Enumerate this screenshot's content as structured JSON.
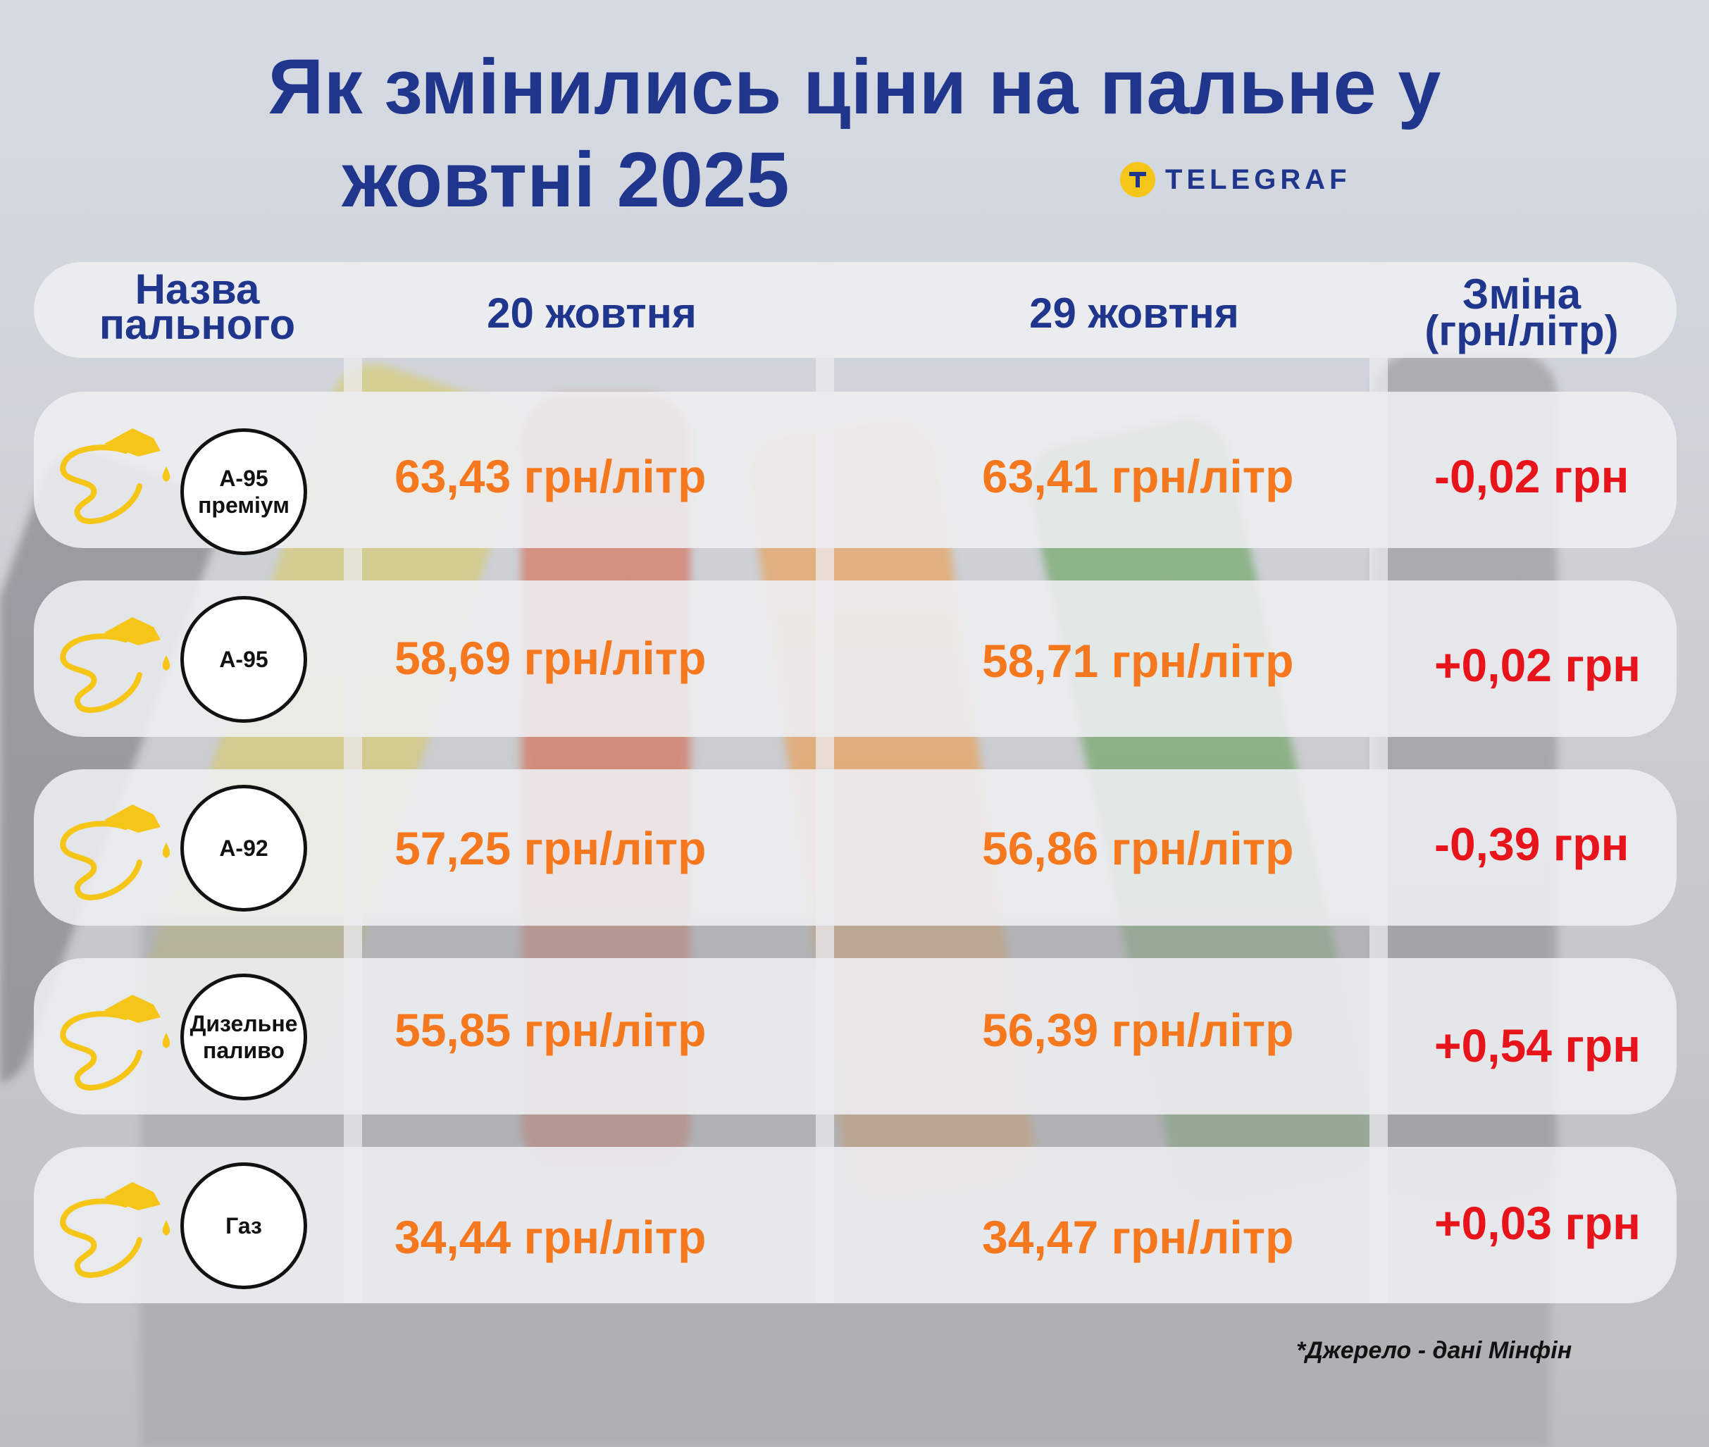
{
  "title": {
    "line1": "Як змінились ціни на пальне у",
    "line2": "жовтні 2025"
  },
  "logo": {
    "icon": "telegraf-logo-icon",
    "text": "TELEGRAF"
  },
  "header": {
    "name_line1": "Назва",
    "name_line2": "пального",
    "date1": "20 жовтня",
    "date2": "29 жовтня",
    "change_line1": "Зміна",
    "change_line2": "(грн/літр)"
  },
  "rows": [
    {
      "fuel_line1": "А-95",
      "fuel_line2": "преміум",
      "price1": "63,43 грн/літр",
      "price2": "63,41 грн/літр",
      "change": "-0,02 грн"
    },
    {
      "fuel_line1": "А-95",
      "fuel_line2": "",
      "price1": "58,69 грн/літр",
      "price2": "58,71 грн/літр",
      "change": "+0,02 грн"
    },
    {
      "fuel_line1": "А-92",
      "fuel_line2": "",
      "price1": "57,25 грн/літр",
      "price2": "56,86 грн/літр",
      "change": "-0,39 грн"
    },
    {
      "fuel_line1": "Дизельне",
      "fuel_line2": "паливо",
      "price1": "55,85 грн/літр",
      "price2": "56,39 грн/літр",
      "change": "+0,54 грн"
    },
    {
      "fuel_line1": "Газ",
      "fuel_line2": "",
      "price1": "34,44 грн/літр",
      "price2": "34,47 грн/літр",
      "change": "+0,03 грн"
    }
  ],
  "source": "*Джерело - дані Мінфін",
  "colors": {
    "title": "#20358c",
    "price": "#f5781e",
    "change": "#e8141b",
    "pump_icon": "#f5c518"
  },
  "icons": {
    "row_icon": "fuel-nozzle-icon"
  }
}
